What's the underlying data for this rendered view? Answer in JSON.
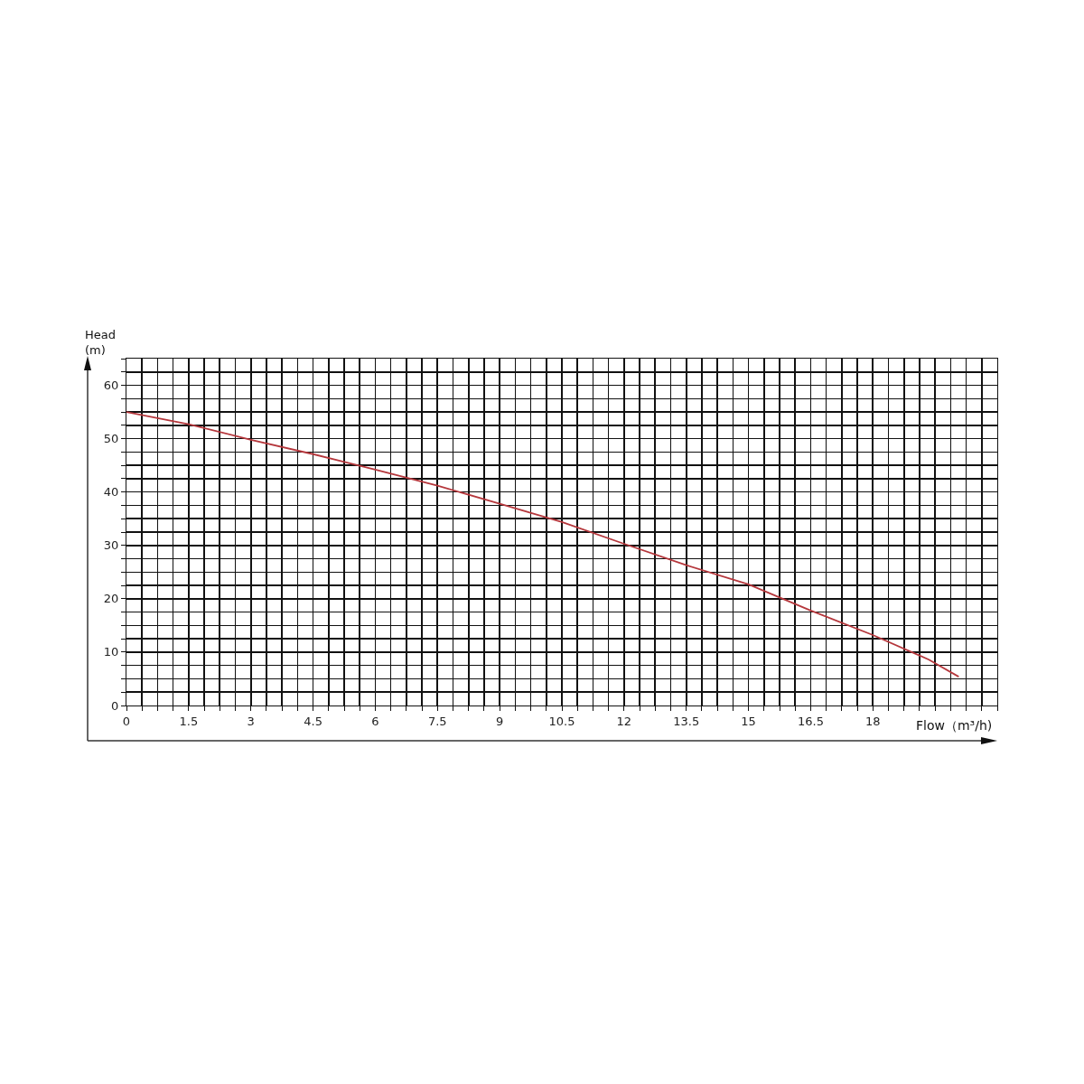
{
  "chart_data": {
    "type": "line",
    "xlabel": "Flow（m³/h)",
    "ylabel": "Head (m)",
    "x": [
      0,
      1.5,
      3,
      4.5,
      6,
      7.5,
      9,
      10.5,
      12,
      13.5,
      15,
      16.5,
      18,
      19.35,
      20.07
    ],
    "series": [
      {
        "color": "#b5373c",
        "values": [
          55,
          52.7,
          49.8,
          47.1,
          44.2,
          41.2,
          37.8,
          34.4,
          30.3,
          26.3,
          22.7,
          17.8,
          13.2,
          8.6,
          5.4
        ]
      }
    ],
    "xlim": [
      0,
      21
    ],
    "ylim": [
      0,
      65
    ],
    "xticks": [
      0,
      {
        "value": 0.375,
        "label": null
      },
      {
        "value": 0.75,
        "label": null
      },
      {
        "value": 1.125,
        "label": null
      },
      1.5,
      {
        "value": 1.875,
        "label": null
      },
      {
        "value": 2.25,
        "label": null
      },
      {
        "value": 2.625,
        "label": null
      },
      3,
      {
        "value": 3.375,
        "label": null
      },
      {
        "value": 3.75,
        "label": null
      },
      {
        "value": 4.125,
        "label": null
      },
      4.5,
      {
        "value": 4.875,
        "label": null
      },
      {
        "value": 5.25,
        "label": null
      },
      {
        "value": 5.625,
        "label": null
      },
      6,
      {
        "value": 6.375,
        "label": null
      },
      {
        "value": 6.75,
        "label": null
      },
      {
        "value": 7.125,
        "label": null
      },
      7.5,
      {
        "value": 7.875,
        "label": null
      },
      {
        "value": 8.25,
        "label": null
      },
      {
        "value": 8.625,
        "label": null
      },
      9,
      {
        "value": 9.375,
        "label": null
      },
      {
        "value": 9.75,
        "label": null
      },
      {
        "value": 10.125,
        "label": null
      },
      10.5,
      {
        "value": 10.875,
        "label": null
      },
      {
        "value": 11.25,
        "label": null
      },
      {
        "value": 11.625,
        "label": null
      },
      12,
      {
        "value": 12.375,
        "label": null
      },
      {
        "value": 12.75,
        "label": null
      },
      {
        "value": 13.125,
        "label": null
      },
      13.5,
      {
        "value": 13.875,
        "label": null
      },
      {
        "value": 14.25,
        "label": null
      },
      {
        "value": 14.625,
        "label": null
      },
      15,
      {
        "value": 15.375,
        "label": null
      },
      {
        "value": 15.75,
        "label": null
      },
      {
        "value": 16.125,
        "label": null
      },
      16.5,
      {
        "value": 16.875,
        "label": null
      },
      {
        "value": 17.25,
        "label": null
      },
      {
        "value": 17.625,
        "label": null
      },
      18,
      {
        "value": 18.375,
        "label": null
      },
      {
        "value": 18.75,
        "label": null
      },
      {
        "value": 19.125,
        "label": null
      },
      {
        "value": 19.5,
        "label": null
      },
      {
        "value": 19.875,
        "label": null
      },
      {
        "value": 20.25,
        "label": null
      },
      {
        "value": 20.625,
        "label": null
      },
      {
        "value": 21,
        "label": null
      }
    ],
    "yticks": [
      0,
      {
        "value": 2.5,
        "label": null
      },
      {
        "value": 5,
        "label": null
      },
      {
        "value": 7.5,
        "label": null
      },
      10,
      {
        "value": 12.5,
        "label": null
      },
      {
        "value": 15,
        "label": null
      },
      {
        "value": 17.5,
        "label": null
      },
      20,
      {
        "value": 22.5,
        "label": null
      },
      {
        "value": 25,
        "label": null
      },
      {
        "value": 27.5,
        "label": null
      },
      30,
      {
        "value": 32.5,
        "label": null
      },
      {
        "value": 35,
        "label": null
      },
      {
        "value": 37.5,
        "label": null
      },
      40,
      {
        "value": 42.5,
        "label": null
      },
      {
        "value": 45,
        "label": null
      },
      {
        "value": 47.5,
        "label": null
      },
      50,
      {
        "value": 52.5,
        "label": null
      },
      {
        "value": 55,
        "label": null
      },
      {
        "value": 57.5,
        "label": null
      },
      60,
      {
        "value": 62.5,
        "label": null
      },
      {
        "value": 65,
        "label": null
      }
    ],
    "grid": true
  }
}
